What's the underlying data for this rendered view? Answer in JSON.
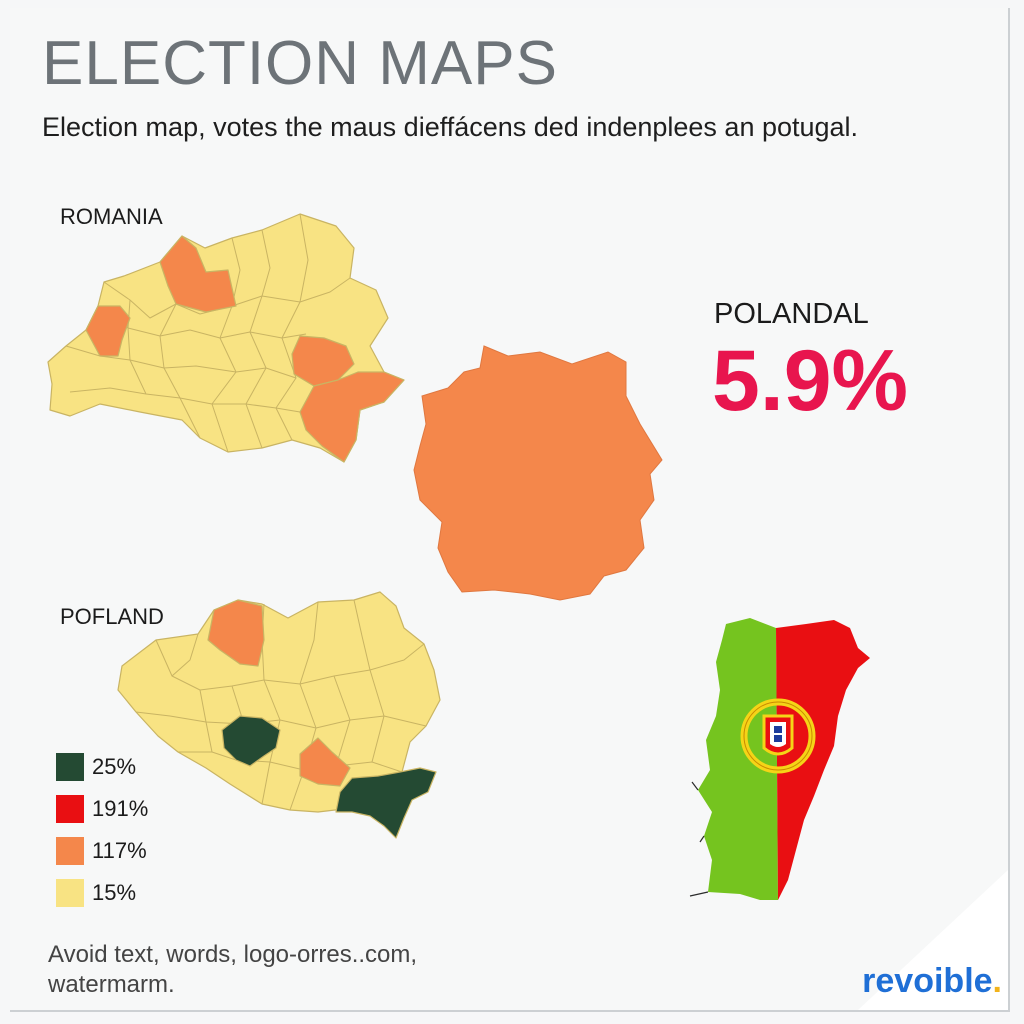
{
  "title": "ELECTION MAPS",
  "subtitle": "Election map, votes the maus dieffácens ded indenplees an potugal.",
  "regions": {
    "top_left_label": "ROMANIA",
    "bottom_left_label": "POFLAND",
    "right_stat_label": "POLANDAL",
    "right_stat_value": "5.9%"
  },
  "legend": [
    {
      "color": "#244a33",
      "label": "25%"
    },
    {
      "color": "#e90f12",
      "label": "191%"
    },
    {
      "color": "#f4874b",
      "label": "117%"
    },
    {
      "color": "#f8e383",
      "label": "15%"
    }
  ],
  "colors": {
    "yellow": "#f8e383",
    "orange": "#f4874b",
    "dark_green": "#244a33",
    "flag_green": "#75c41f",
    "flag_red": "#e90f12",
    "stat_red": "#e8154e"
  },
  "footnote": {
    "line1": "Avoid text, words, logo-orres..com,",
    "line2": "watermarm."
  },
  "brand": {
    "name": "revoible",
    "dot": "."
  }
}
